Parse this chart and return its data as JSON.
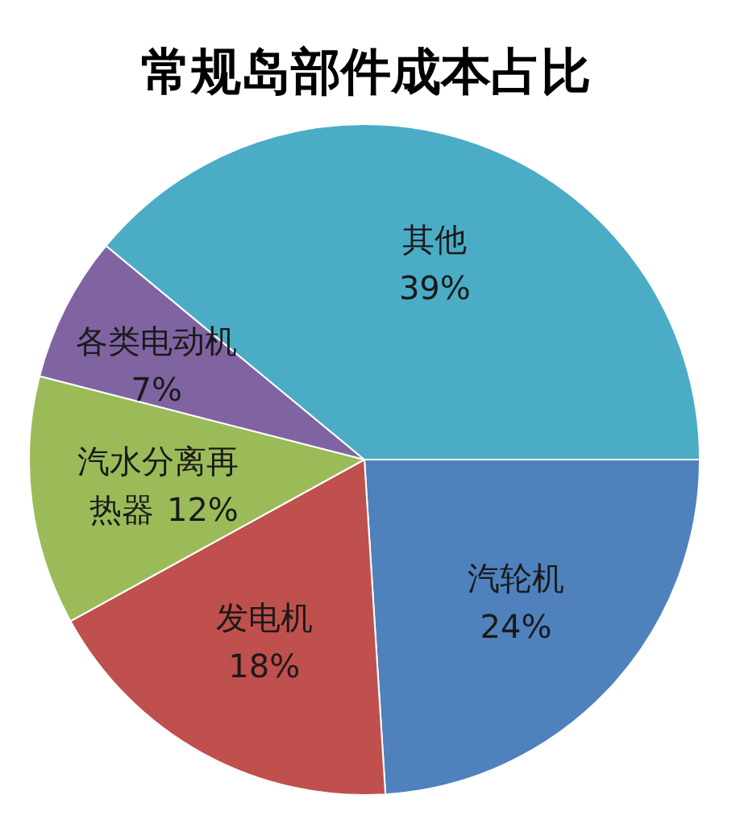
{
  "chart_data": {
    "type": "pie",
    "title": "常规岛部件成本占比",
    "categories": [
      "汽轮机",
      "发电机",
      "汽水分离再热器",
      "各类电动机",
      "其他"
    ],
    "values": [
      24,
      18,
      12,
      7,
      39
    ],
    "colors": [
      "#4f81bd",
      "#c0504d",
      "#9bbb59",
      "#8064a2",
      "#4bacc6"
    ],
    "value_labels": [
      "24%",
      "18%",
      "12%",
      "7%",
      "39%"
    ]
  }
}
